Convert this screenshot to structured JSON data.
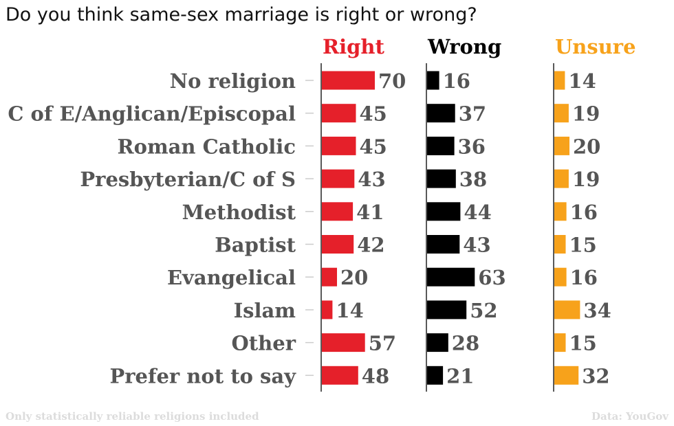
{
  "chart_data": {
    "type": "bar",
    "title": "Do you think same-sex marriage is right or wrong?",
    "categories": [
      "No religion",
      "C of E/Anglican/Episcopal",
      "Roman Catholic",
      "Presbyterian/C of S",
      "Methodist",
      "Baptist",
      "Evangelical",
      "Islam",
      "Other",
      "Prefer not to say"
    ],
    "series": [
      {
        "name": "Right",
        "color": "#e5202a",
        "values": [
          70,
          45,
          45,
          43,
          41,
          42,
          20,
          14,
          57,
          48
        ]
      },
      {
        "name": "Wrong",
        "color": "#000000",
        "values": [
          16,
          37,
          36,
          38,
          44,
          43,
          63,
          52,
          28,
          21
        ]
      },
      {
        "name": "Unsure",
        "color": "#f7a21b",
        "values": [
          14,
          19,
          20,
          19,
          16,
          15,
          16,
          34,
          15,
          32
        ]
      }
    ],
    "xlim": [
      0,
      100
    ],
    "grid": false,
    "legend": "top"
  },
  "footnote": "Only statistically reliable religions included",
  "source": "Data: YouGov"
}
